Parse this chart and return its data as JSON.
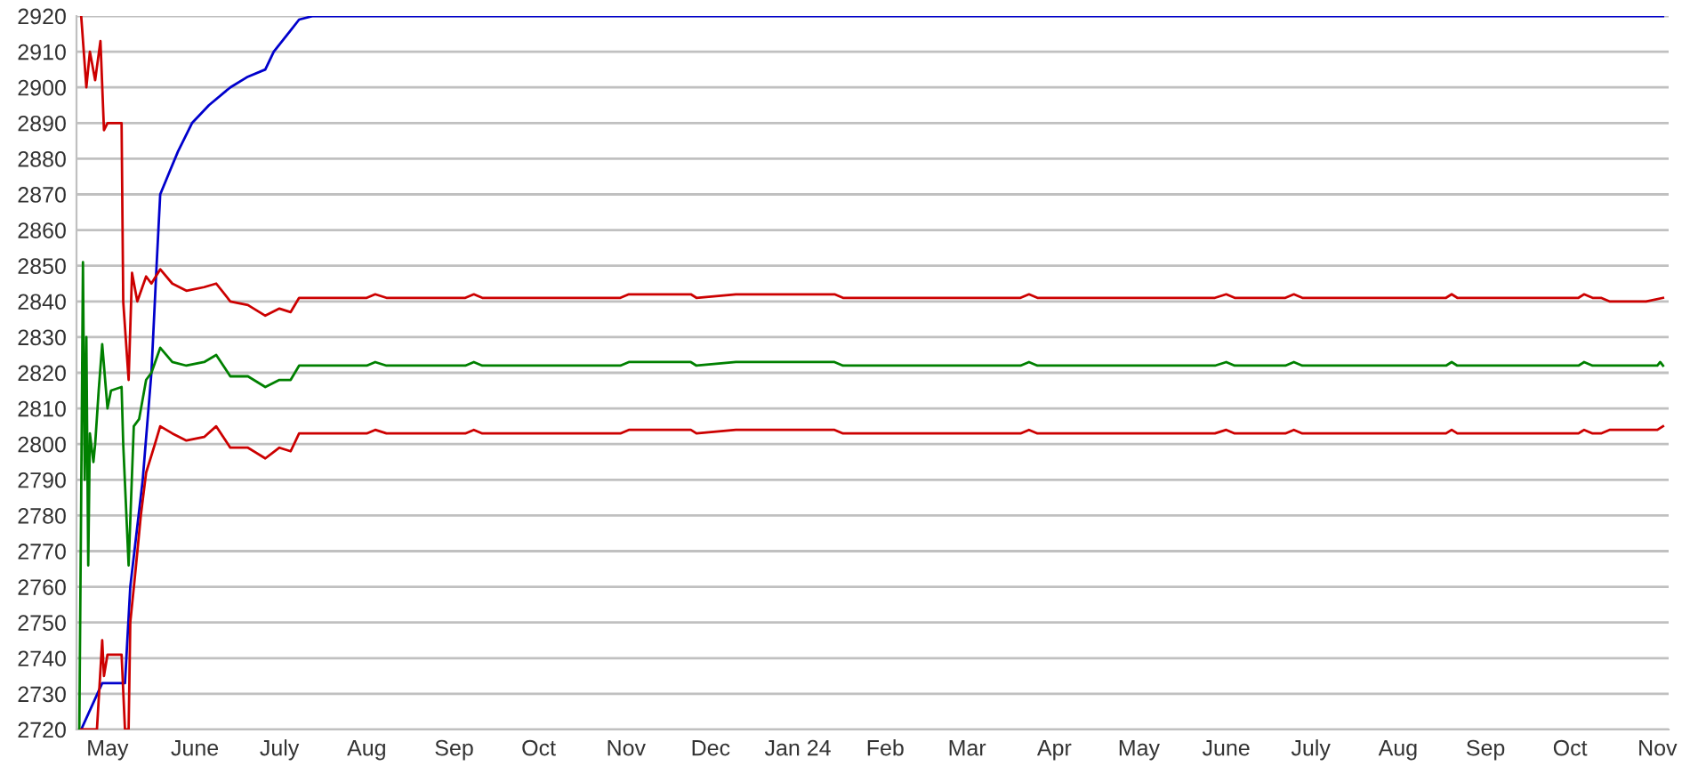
{
  "chart_data": {
    "type": "line",
    "grid": "y",
    "marker": "none",
    "line_style": "solid",
    "xlim": [
      "2023-04-20",
      "2024-11-05"
    ],
    "xticks": [
      {
        "value": "2023-05-01",
        "label": "May"
      },
      {
        "value": "2023-06-01",
        "label": "June"
      },
      {
        "value": "2023-07-01",
        "label": "July"
      },
      {
        "value": "2023-08-01",
        "label": "Aug"
      },
      {
        "value": "2023-09-01",
        "label": "Sep"
      },
      {
        "value": "2023-10-01",
        "label": "Oct"
      },
      {
        "value": "2023-11-01",
        "label": "Nov"
      },
      {
        "value": "2023-12-01",
        "label": "Dec"
      },
      {
        "value": "2024-01-01",
        "label": "Jan 24"
      },
      {
        "value": "2024-02-01",
        "label": "Feb"
      },
      {
        "value": "2024-03-01",
        "label": "Mar"
      },
      {
        "value": "2024-04-01",
        "label": "Apr"
      },
      {
        "value": "2024-05-01",
        "label": "May"
      },
      {
        "value": "2024-06-01",
        "label": "June"
      },
      {
        "value": "2024-07-01",
        "label": "July"
      },
      {
        "value": "2024-08-01",
        "label": "Aug"
      },
      {
        "value": "2024-09-01",
        "label": "Sep"
      },
      {
        "value": "2024-10-01",
        "label": "Oct"
      },
      {
        "value": "2024-11-01",
        "label": "Nov"
      }
    ],
    "ylim": [
      2720,
      2920
    ],
    "yticks": [
      2720,
      2730,
      2740,
      2750,
      2760,
      2770,
      2780,
      2790,
      2800,
      2810,
      2820,
      2830,
      2840,
      2850,
      2860,
      2870,
      2880,
      2890,
      2900,
      2910,
      2920
    ],
    "series": [
      {
        "color": "#0000cc",
        "x": [
          "2023-04-21T16:00",
          "2023-04-29T03:00",
          "2023-05-07T05:00",
          "2023-05-09T02:00",
          "2023-05-13T12:00",
          "2023-05-16T14:00",
          "2023-05-18T10:00",
          "2023-05-19T17:00",
          "2023-05-22T20:00",
          "2023-05-26",
          "2023-05-31",
          "2023-06-02T10:00",
          "2023-06-06",
          "2023-06-13T14:00",
          "2023-06-19T20:00",
          "2023-06-26",
          "2023-06-29",
          "2023-07-05",
          "2023-07-08",
          "2023-07-13",
          "2024-11-03"
        ],
        "values": [
          2720,
          2733,
          2733,
          2760,
          2790,
          2820,
          2850,
          2870,
          2876,
          2882,
          2890,
          2892,
          2895,
          2900,
          2903,
          2905,
          2910,
          2916,
          2919,
          2920,
          2920
        ]
      },
      {
        "color": "#cc0000",
        "x": [
          "2023-04-21T16:00",
          "2023-04-23T12:00",
          "2023-04-24T18:00",
          "2023-04-26T15:00",
          "2023-04-28T12:00",
          "2023-04-29T18:00",
          "2023-05-01",
          "2023-05-06",
          "2023-05-06T14:00",
          "2023-05-08T12:00",
          "2023-05-09T17:00",
          "2023-05-11T14:00",
          "2023-05-14T17:00",
          "2023-05-16T14:00",
          "2023-05-19T17:00",
          "2023-05-24",
          "2023-05-29",
          "2023-06-04T07:00",
          "2023-06-08T14:00",
          "2023-06-13T14:00",
          "2023-06-19T20:00",
          "2023-06-26",
          "2023-07-01",
          "2023-07-05",
          "2023-07-08",
          "2023-08-01",
          "2023-08-04",
          "2023-08-08",
          "2023-09-05",
          "2023-09-08",
          "2023-09-11",
          "2023-10-30",
          "2023-11-02",
          "2023-11-24",
          "2023-11-26",
          "2023-12-10",
          "2024-01-14",
          "2024-01-17",
          "2024-03-20",
          "2024-03-23",
          "2024-03-26",
          "2024-05-28",
          "2024-06-01",
          "2024-06-04",
          "2024-06-22",
          "2024-06-25",
          "2024-06-28",
          "2024-08-18",
          "2024-08-20",
          "2024-08-22",
          "2024-10-04",
          "2024-10-06",
          "2024-10-09",
          "2024-10-12",
          "2024-10-15",
          "2024-10-28",
          "2024-11-03"
        ],
        "values": [
          2920,
          2900,
          2910,
          2902,
          2913,
          2888,
          2890,
          2890,
          2840,
          2818,
          2848,
          2840,
          2847,
          2845,
          2849,
          2845,
          2843,
          2844,
          2845,
          2840,
          2839,
          2836,
          2838,
          2837,
          2841,
          2841,
          2842,
          2841,
          2841,
          2842,
          2841,
          2841,
          2842,
          2842,
          2841,
          2842,
          2842,
          2841,
          2841,
          2842,
          2841,
          2841,
          2842,
          2841,
          2841,
          2842,
          2841,
          2841,
          2842,
          2841,
          2841,
          2842,
          2841,
          2841,
          2840,
          2840,
          2841
        ]
      },
      {
        "color": "#008000",
        "x": [
          "2023-04-21",
          "2023-04-21T16:00",
          "2023-04-22T07:00",
          "2023-04-22T22:00",
          "2023-04-23T12:00",
          "2023-04-24T04:00",
          "2023-04-24T18:00",
          "2023-04-26",
          "2023-04-26T15:00",
          "2023-04-27T21:00",
          "2023-04-29T03:00",
          "2023-05-01",
          "2023-05-02T06:00",
          "2023-05-06",
          "2023-05-06T14:00",
          "2023-05-08T12:00",
          "2023-05-10T08:00",
          "2023-05-12T05:00",
          "2023-05-14T17:00",
          "2023-05-16T14:00",
          "2023-05-19T17:00",
          "2023-05-24",
          "2023-05-29",
          "2023-06-04T07:00",
          "2023-06-08T14:00",
          "2023-06-13T14:00",
          "2023-06-19T20:00",
          "2023-06-26",
          "2023-07-01",
          "2023-07-05",
          "2023-07-08",
          "2023-08-01",
          "2023-08-04",
          "2023-08-08",
          "2023-09-05",
          "2023-09-08",
          "2023-09-11",
          "2023-10-30",
          "2023-11-02",
          "2023-11-24",
          "2023-11-26",
          "2023-12-10",
          "2024-01-14",
          "2024-01-17",
          "2024-03-20",
          "2024-03-23",
          "2024-03-26",
          "2024-05-28",
          "2024-06-01",
          "2024-06-04",
          "2024-06-22",
          "2024-06-25",
          "2024-06-28",
          "2024-08-18",
          "2024-08-20",
          "2024-08-22",
          "2024-10-04",
          "2024-10-06",
          "2024-10-09",
          "2024-11-01",
          "2024-11-02",
          "2024-11-03"
        ],
        "values": [
          2720,
          2785,
          2851,
          2790,
          2830,
          2766,
          2803,
          2795,
          2800,
          2815,
          2828,
          2810,
          2815,
          2816,
          2800,
          2766,
          2805,
          2807,
          2818,
          2820,
          2827,
          2823,
          2822,
          2823,
          2825,
          2819,
          2819,
          2816,
          2818,
          2818,
          2822,
          2822,
          2823,
          2822,
          2822,
          2823,
          2822,
          2822,
          2823,
          2823,
          2822,
          2823,
          2823,
          2822,
          2822,
          2823,
          2822,
          2822,
          2823,
          2822,
          2822,
          2823,
          2822,
          2822,
          2823,
          2822,
          2822,
          2823,
          2822,
          2822,
          2823,
          2822
        ]
      },
      {
        "color": "#cc0000",
        "x": [
          "2023-04-21T16:00",
          "2023-04-27T06:00",
          "2023-04-29T03:00",
          "2023-04-29T18:00",
          "2023-05-01",
          "2023-05-06",
          "2023-05-07T05:00",
          "2023-05-08T12:00",
          "2023-05-09T02:00",
          "2023-05-11",
          "2023-05-12T20:00",
          "2023-05-14T17:00",
          "2023-05-17T20:00",
          "2023-05-19T17:00",
          "2023-05-24",
          "2023-05-29",
          "2023-06-04T07:00",
          "2023-06-08T14:00",
          "2023-06-13T14:00",
          "2023-06-19T20:00",
          "2023-06-26",
          "2023-07-01",
          "2023-07-05",
          "2023-07-08",
          "2023-08-01",
          "2023-08-04",
          "2023-08-08",
          "2023-09-05",
          "2023-09-08",
          "2023-09-11",
          "2023-10-30",
          "2023-11-02",
          "2023-11-24",
          "2023-11-26",
          "2023-12-10",
          "2024-01-14",
          "2024-01-17",
          "2024-03-20",
          "2024-03-23",
          "2024-03-26",
          "2024-05-28",
          "2024-06-01",
          "2024-06-04",
          "2024-06-22",
          "2024-06-25",
          "2024-06-28",
          "2024-08-18",
          "2024-08-20",
          "2024-08-22",
          "2024-10-04",
          "2024-10-06",
          "2024-10-09",
          "2024-10-12",
          "2024-10-15",
          "2024-11-01",
          "2024-11-03"
        ],
        "values": [
          2720,
          2720,
          2745,
          2735,
          2741,
          2741,
          2720,
          2720,
          2750,
          2765,
          2780,
          2792,
          2800,
          2805,
          2803,
          2801,
          2802,
          2805,
          2799,
          2799,
          2796,
          2799,
          2798,
          2803,
          2803,
          2804,
          2803,
          2803,
          2804,
          2803,
          2803,
          2804,
          2804,
          2803,
          2804,
          2804,
          2803,
          2803,
          2804,
          2803,
          2803,
          2804,
          2803,
          2803,
          2804,
          2803,
          2803,
          2804,
          2803,
          2803,
          2804,
          2803,
          2803,
          2804,
          2804,
          2805
        ]
      }
    ]
  }
}
